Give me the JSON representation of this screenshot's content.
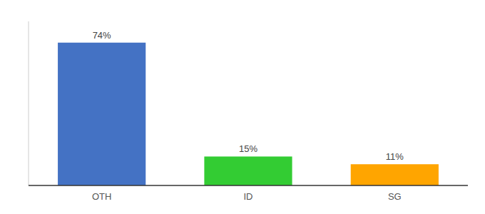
{
  "chart_data": {
    "type": "bar",
    "categories": [
      "OTH",
      "ID",
      "SG"
    ],
    "values": [
      74,
      15,
      11
    ],
    "value_labels": [
      "74%",
      "15%",
      "11%"
    ],
    "colors": [
      "#4472C4",
      "#33CC33",
      "#FFA500"
    ],
    "ylim": [
      0,
      85
    ],
    "data_labels": true,
    "tick_labels": "x",
    "grid": false
  }
}
